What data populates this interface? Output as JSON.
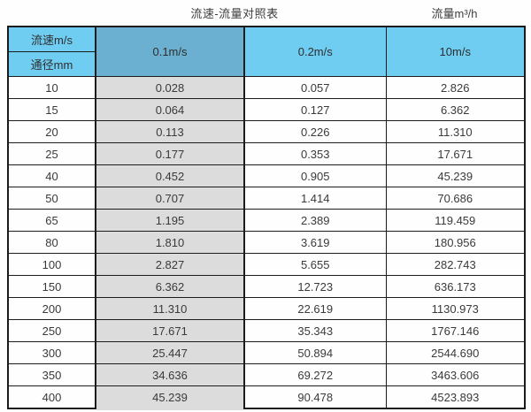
{
  "header": {
    "title": "流速-流量对照表",
    "unit_label": "流量m³/h"
  },
  "table": {
    "corner_top": "流速m/s",
    "corner_bottom": "通径mm",
    "velocity_columns": [
      "0.1m/s",
      "0.2m/s",
      "10m/s"
    ],
    "rows": [
      {
        "diameter": "10",
        "values": [
          "0.028",
          "0.057",
          "2.826"
        ]
      },
      {
        "diameter": "15",
        "values": [
          "0.064",
          "0.127",
          "6.362"
        ]
      },
      {
        "diameter": "20",
        "values": [
          "0.113",
          "0.226",
          "11.310"
        ]
      },
      {
        "diameter": "25",
        "values": [
          "0.177",
          "0.353",
          "17.671"
        ]
      },
      {
        "diameter": "40",
        "values": [
          "0.452",
          "0.905",
          "45.239"
        ]
      },
      {
        "diameter": "50",
        "values": [
          "0.707",
          "1.414",
          "70.686"
        ]
      },
      {
        "diameter": "65",
        "values": [
          "1.195",
          "2.389",
          "119.459"
        ]
      },
      {
        "diameter": "80",
        "values": [
          "1.810",
          "3.619",
          "180.956"
        ]
      },
      {
        "diameter": "100",
        "values": [
          "2.827",
          "5.655",
          "282.743"
        ]
      },
      {
        "diameter": "150",
        "values": [
          "6.362",
          "12.723",
          "636.173"
        ]
      },
      {
        "diameter": "200",
        "values": [
          "11.310",
          "22.619",
          "1130.973"
        ]
      },
      {
        "diameter": "250",
        "values": [
          "17.671",
          "35.343",
          "1767.146"
        ]
      },
      {
        "diameter": "300",
        "values": [
          "25.447",
          "50.894",
          "2544.690"
        ]
      },
      {
        "diameter": "350",
        "values": [
          "34.636",
          "69.272",
          "3463.606"
        ]
      },
      {
        "diameter": "400",
        "values": [
          "45.239",
          "90.478",
          "4523.893"
        ]
      }
    ]
  },
  "colors": {
    "header_blue": "#6FCDF1",
    "highlight_header_blue": "#6BB0D0",
    "highlight_column_gray": "#DCDCDC",
    "border": "#1b1b1b"
  },
  "chart_data": {
    "type": "table",
    "title": "流速-流量对照表",
    "unit": "流量m³/h",
    "columns": [
      "通径mm",
      "0.1m/s",
      "0.2m/s",
      "10m/s"
    ],
    "rows": [
      [
        10,
        0.028,
        0.057,
        2.826
      ],
      [
        15,
        0.064,
        0.127,
        6.362
      ],
      [
        20,
        0.113,
        0.226,
        11.31
      ],
      [
        25,
        0.177,
        0.353,
        17.671
      ],
      [
        40,
        0.452,
        0.905,
        45.239
      ],
      [
        50,
        0.707,
        1.414,
        70.686
      ],
      [
        65,
        1.195,
        2.389,
        119.459
      ],
      [
        80,
        1.81,
        3.619,
        180.956
      ],
      [
        100,
        2.827,
        5.655,
        282.743
      ],
      [
        150,
        6.362,
        12.723,
        636.173
      ],
      [
        200,
        11.31,
        22.619,
        1130.973
      ],
      [
        250,
        17.671,
        35.343,
        1767.146
      ],
      [
        300,
        25.447,
        50.894,
        2544.69
      ],
      [
        350,
        34.636,
        69.272,
        3463.606
      ],
      [
        400,
        45.239,
        90.478,
        4523.893
      ]
    ]
  }
}
